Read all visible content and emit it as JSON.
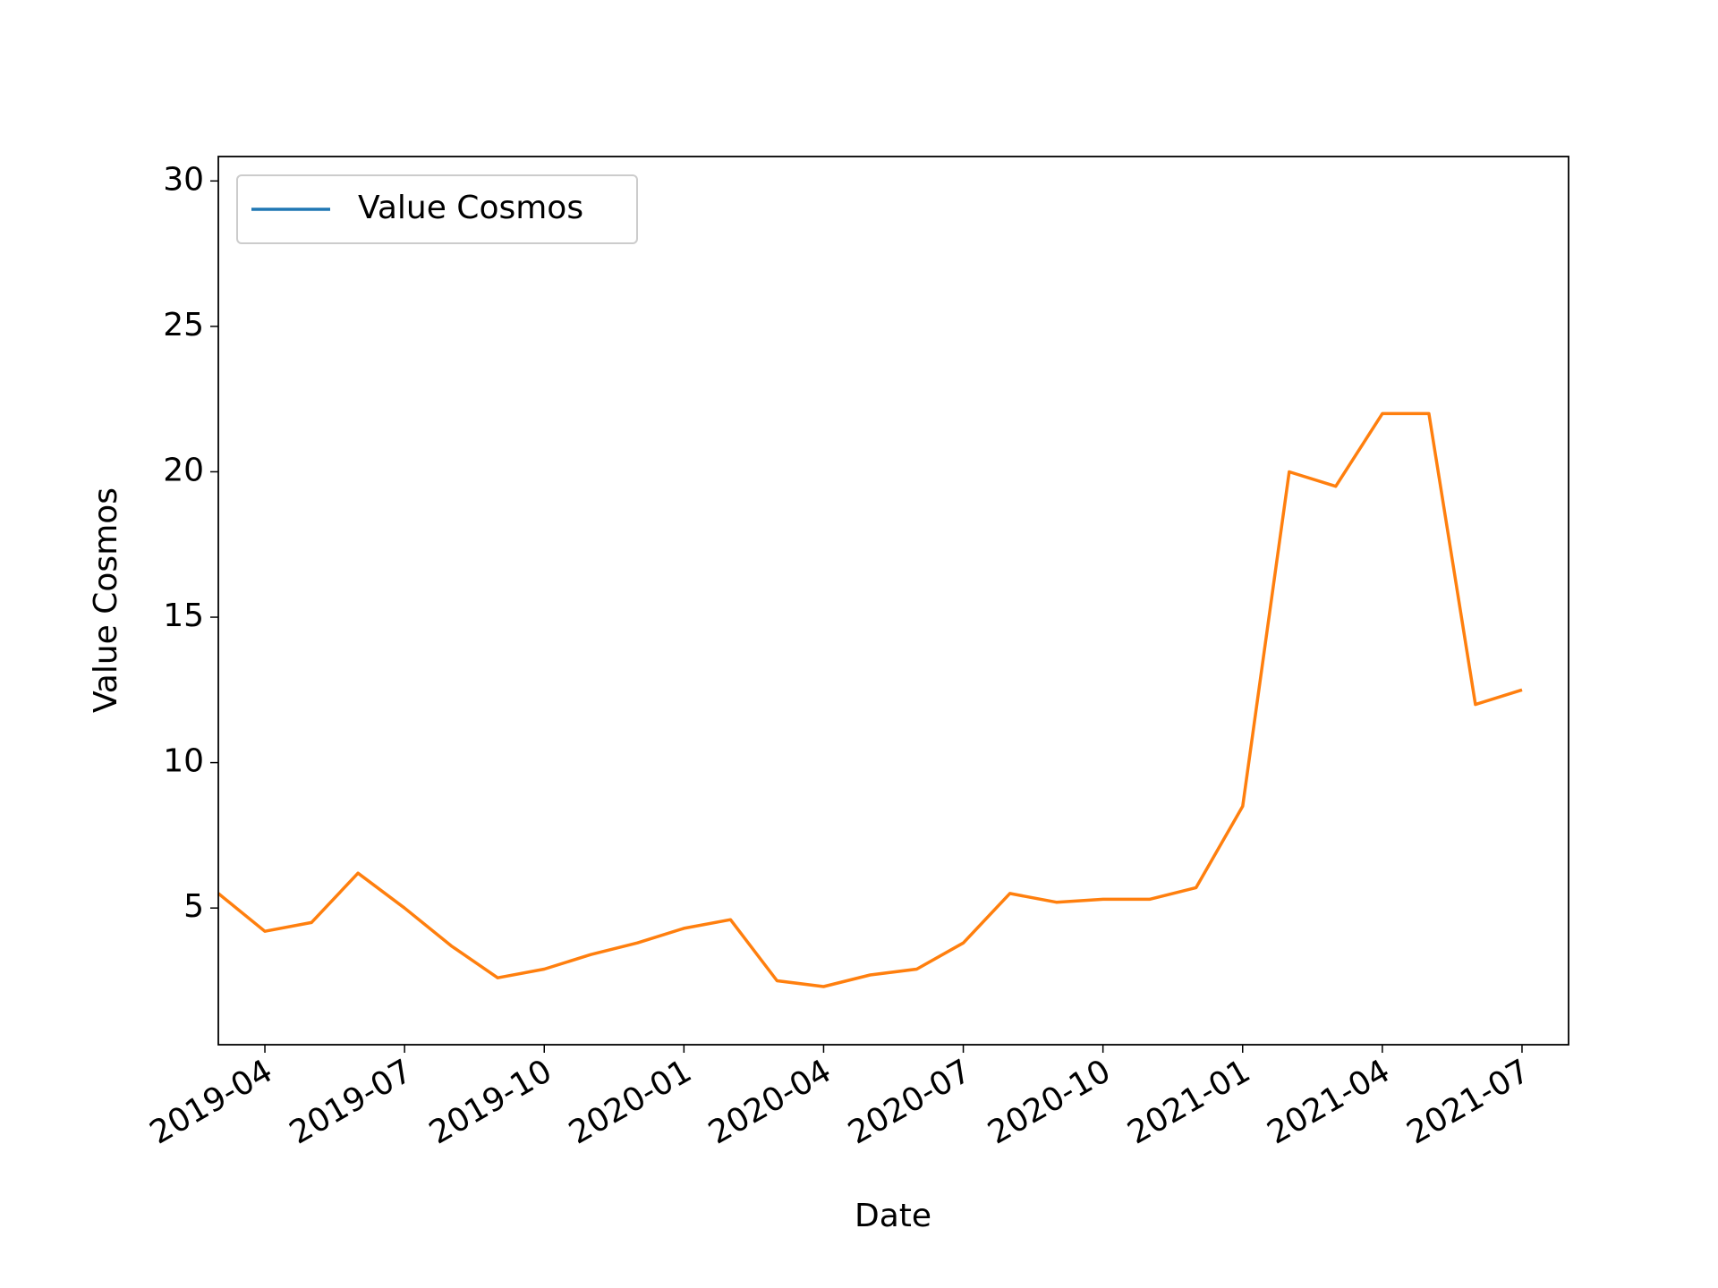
{
  "chart_data": {
    "type": "line",
    "x_label": "Date",
    "y_label": "Value Cosmos",
    "x": [
      "2019-03",
      "2019-04",
      "2019-05",
      "2019-06",
      "2019-07",
      "2019-08",
      "2019-09",
      "2019-10",
      "2019-11",
      "2019-12",
      "2020-01",
      "2020-02",
      "2020-03",
      "2020-04",
      "2020-05",
      "2020-06",
      "2020-07",
      "2020-08",
      "2020-09",
      "2020-10",
      "2020-11",
      "2020-12",
      "2021-01",
      "2021-02",
      "2021-03",
      "2021-04",
      "2021-05",
      "2021-06",
      "2021-07"
    ],
    "series": [
      {
        "name": "Value Cosmos",
        "color": "#ff7f0e",
        "values": [
          5.5,
          4.2,
          4.5,
          6.2,
          5.0,
          3.7,
          2.6,
          2.9,
          3.4,
          3.8,
          4.3,
          4.6,
          2.5,
          2.3,
          2.7,
          2.9,
          3.8,
          5.5,
          5.2,
          5.3,
          5.3,
          5.7,
          8.5,
          20,
          19.5,
          22,
          22,
          12,
          12.5
        ]
      }
    ],
    "legend_color": "#1f77b4",
    "legend": "upper left",
    "xlim": [
      "2019-03",
      "2021-08"
    ],
    "xticks": [
      "2019-04",
      "2019-07",
      "2019-10",
      "2020-01",
      "2020-04",
      "2020-07",
      "2020-10",
      "2021-01",
      "2021-04",
      "2021-07"
    ],
    "ylim": [
      0.3,
      30.84
    ],
    "yticks": [
      5,
      10,
      15,
      20,
      25,
      30
    ],
    "grid": false
  }
}
